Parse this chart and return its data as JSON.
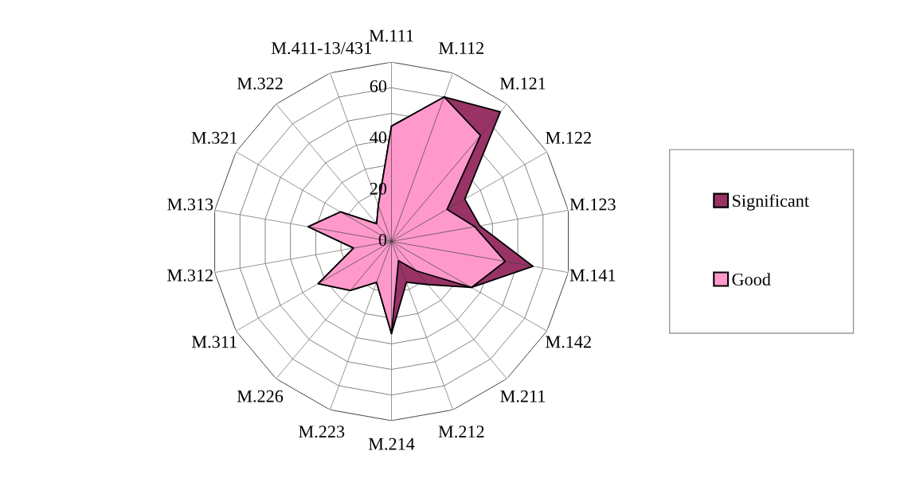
{
  "chart_data": {
    "type": "radar",
    "categories": [
      "M.111",
      "M.112",
      "M.121",
      "M.122",
      "M.123",
      "M.141",
      "M.142",
      "M.211",
      "M.212",
      "M.214",
      "M.223",
      "M.226",
      "M.311",
      "M.312",
      "M.313",
      "M.321",
      "M.322",
      "M.411-13/431"
    ],
    "series": [
      {
        "name": "Significant",
        "color": "#993366",
        "values": [
          45,
          60,
          66,
          33,
          35,
          56,
          36,
          22,
          17,
          36,
          17,
          25,
          33,
          15,
          33,
          23,
          9,
          15
        ]
      },
      {
        "name": "Good",
        "color": "#ff99cc",
        "values": [
          45,
          60,
          54,
          25,
          33,
          45,
          36,
          15,
          8,
          36,
          17,
          25,
          33,
          15,
          33,
          23,
          9,
          15
        ]
      }
    ],
    "ylim": [
      0,
      70
    ],
    "yticks": [
      0,
      20,
      40,
      60
    ],
    "legend": "right",
    "grid": true
  }
}
